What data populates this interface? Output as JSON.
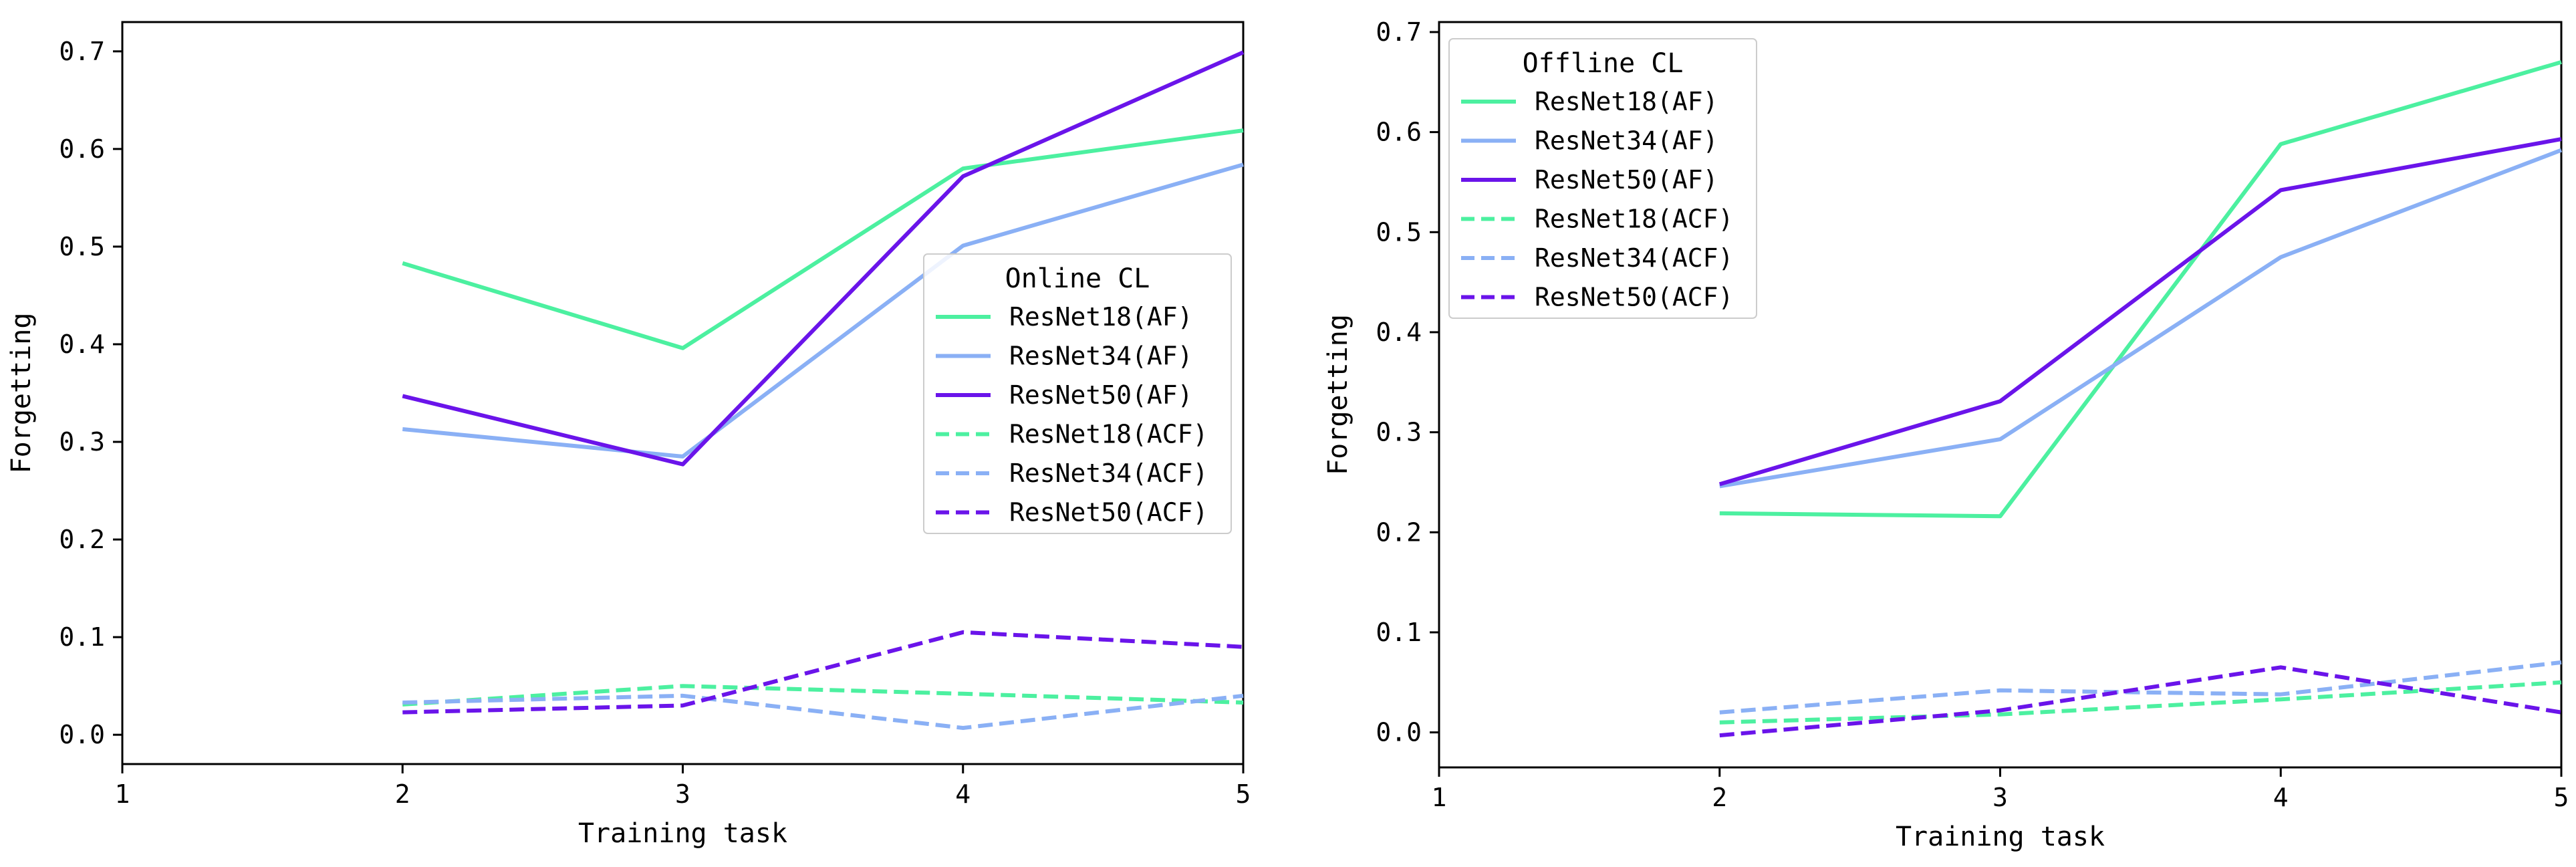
{
  "chart_data": [
    {
      "type": "line",
      "title": "",
      "xlabel": "Training task",
      "ylabel": "Forgetting",
      "xlim": [
        1,
        5
      ],
      "ylim": [
        -0.03,
        0.73
      ],
      "xticks": [
        "1",
        "2",
        "3",
        "4",
        "5"
      ],
      "yticks": [
        "0.0",
        "0.1",
        "0.2",
        "0.3",
        "0.4",
        "0.5",
        "0.6",
        "0.7"
      ],
      "grid": false,
      "legend": {
        "title": "Online CL",
        "location": "center-right"
      },
      "x": [
        2,
        3,
        4,
        5
      ],
      "series": [
        {
          "name": "ResNet18(AF)",
          "color": "#4cf0a0",
          "style": "solid",
          "values": [
            0.483,
            0.396,
            0.58,
            0.619
          ]
        },
        {
          "name": "ResNet34(AF)",
          "color": "#8ab0f5",
          "style": "solid",
          "values": [
            0.313,
            0.285,
            0.501,
            0.584
          ]
        },
        {
          "name": "ResNet50(AF)",
          "color": "#6a14ea",
          "style": "solid",
          "values": [
            0.347,
            0.277,
            0.572,
            0.699
          ]
        },
        {
          "name": "ResNet18(ACF)",
          "color": "#4cf0a0",
          "style": "dashed",
          "values": [
            0.031,
            0.05,
            0.042,
            0.033
          ]
        },
        {
          "name": "ResNet34(ACF)",
          "color": "#8ab0f5",
          "style": "dashed",
          "values": [
            0.033,
            0.04,
            0.007,
            0.04
          ]
        },
        {
          "name": "ResNet50(ACF)",
          "color": "#6a14ea",
          "style": "dashed",
          "values": [
            0.023,
            0.03,
            0.105,
            0.09
          ]
        }
      ]
    },
    {
      "type": "line",
      "title": "",
      "xlabel": "Training task",
      "ylabel": "Forgetting",
      "xlim": [
        1,
        5
      ],
      "ylim": [
        -0.035,
        0.71
      ],
      "xticks": [
        "1",
        "2",
        "3",
        "4",
        "5"
      ],
      "yticks": [
        "0.0",
        "0.1",
        "0.2",
        "0.3",
        "0.4",
        "0.5",
        "0.6",
        "0.7"
      ],
      "grid": false,
      "legend": {
        "title": "Offline CL",
        "location": "top-left"
      },
      "x": [
        2,
        3,
        4,
        5
      ],
      "series": [
        {
          "name": "ResNet18(AF)",
          "color": "#4cf0a0",
          "style": "solid",
          "values": [
            0.219,
            0.216,
            0.588,
            0.67
          ]
        },
        {
          "name": "ResNet34(AF)",
          "color": "#8ab0f5",
          "style": "solid",
          "values": [
            0.246,
            0.293,
            0.475,
            0.582
          ]
        },
        {
          "name": "ResNet50(AF)",
          "color": "#6a14ea",
          "style": "solid",
          "values": [
            0.248,
            0.331,
            0.542,
            0.593
          ]
        },
        {
          "name": "ResNet18(ACF)",
          "color": "#4cf0a0",
          "style": "dashed",
          "values": [
            0.01,
            0.018,
            0.033,
            0.05
          ]
        },
        {
          "name": "ResNet34(ACF)",
          "color": "#8ab0f5",
          "style": "dashed",
          "values": [
            0.02,
            0.042,
            0.038,
            0.07
          ]
        },
        {
          "name": "ResNet50(ACF)",
          "color": "#6a14ea",
          "style": "dashed",
          "values": [
            -0.003,
            0.022,
            0.065,
            0.02
          ]
        }
      ]
    }
  ]
}
